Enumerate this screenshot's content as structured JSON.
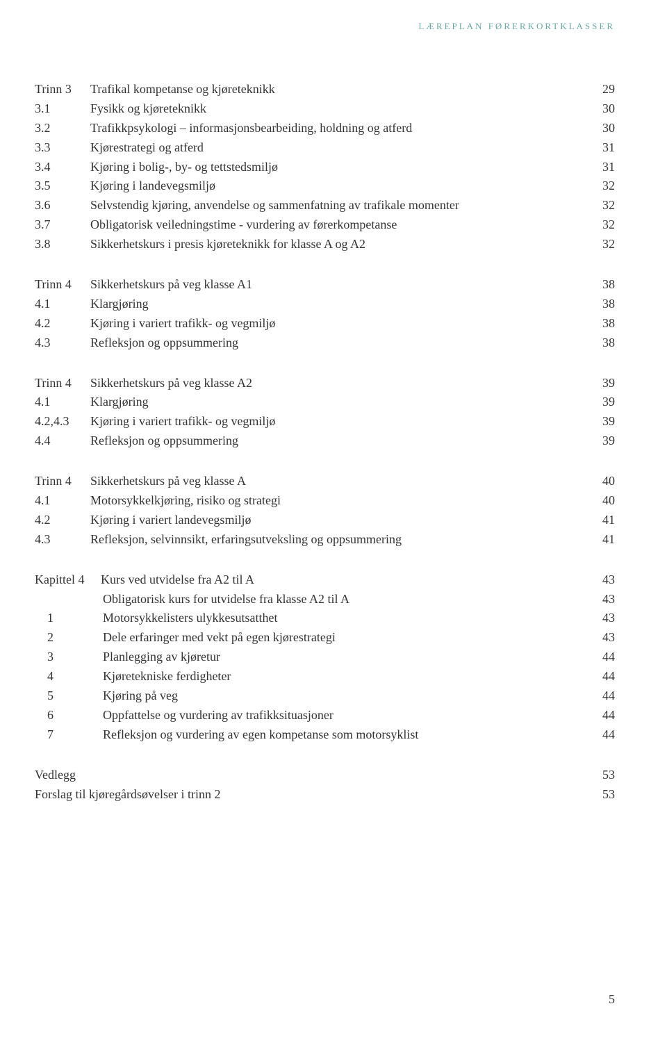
{
  "header": {
    "text": "LÆREPLAN FØRERKORTKLASSER",
    "color": "#6aa8a3",
    "fontsize": 13
  },
  "typography": {
    "body_color": "#333333",
    "body_fontsize": 18,
    "line_height": 1.55
  },
  "sections": [
    {
      "rows": [
        {
          "num": "Trinn 3",
          "label": "Trafikal kompetanse og kjøreteknikk",
          "page": "29"
        },
        {
          "num": "3.1",
          "label": "Fysikk og kjøreteknikk",
          "page": "30"
        },
        {
          "num": "3.2",
          "label": "Trafikkpsykologi – informasjonsbearbeiding, holdning og atferd",
          "page": "30"
        },
        {
          "num": "3.3",
          "label": "Kjørestrategi og atferd",
          "page": "31"
        },
        {
          "num": "3.4",
          "label": "Kjøring i bolig-, by- og tettstedsmiljø",
          "page": "31"
        },
        {
          "num": "3.5",
          "label": "Kjøring i landevegsmiljø",
          "page": "32"
        },
        {
          "num": "3.6",
          "label": "Selvstendig kjøring, anvendelse og sammenfatning av trafikale momenter",
          "page": "32"
        },
        {
          "num": "3.7",
          "label": "Obligatorisk veiledningstime - vurdering av førerkompetanse",
          "page": "32"
        },
        {
          "num": "3.8",
          "label": "Sikkerhetskurs i presis kjøreteknikk for klasse A og A2",
          "page": "32"
        }
      ]
    },
    {
      "rows": [
        {
          "num": "Trinn 4",
          "label": "Sikkerhetskurs på veg klasse A1",
          "page": "38"
        },
        {
          "num": "4.1",
          "label": "Klargjøring",
          "page": "38"
        },
        {
          "num": "4.2",
          "label": "Kjøring i variert trafikk- og vegmiljø",
          "page": "38"
        },
        {
          "num": "4.3",
          "label": "Refleksjon og oppsummering",
          "page": "38"
        }
      ]
    },
    {
      "rows": [
        {
          "num": "Trinn 4",
          "label": "Sikkerhetskurs på veg klasse A2",
          "page": "39"
        },
        {
          "num": "4.1",
          "label": "Klargjøring",
          "page": "39"
        },
        {
          "num": "4.2,4.3",
          "label": "Kjøring i variert trafikk- og vegmiljø",
          "page": "39"
        },
        {
          "num": "4.4",
          "label": "Refleksjon og oppsummering",
          "page": "39"
        }
      ]
    },
    {
      "rows": [
        {
          "num": "Trinn 4",
          "label": "Sikkerhetskurs på veg klasse A",
          "page": "40"
        },
        {
          "num": "4.1",
          "label": "Motorsykkelkjøring, risiko og strategi",
          "page": "40"
        },
        {
          "num": "4.2",
          "label": "Kjøring i variert landevegsmiljø",
          "page": "41"
        },
        {
          "num": "4.3",
          "label": "Refleksjon, selvinnsikt, erfaringsutveksling og oppsummering",
          "page": "41"
        }
      ]
    },
    {
      "rows": [
        {
          "num": "Kapittel 4",
          "label": "Kurs ved utvidelse fra A2 til A",
          "page": "43",
          "numclass": "num-kap"
        },
        {
          "num": "",
          "label": "Obligatorisk kurs for utvidelse fra klasse A2 til A",
          "page": "43",
          "indent": true
        },
        {
          "num": "1",
          "label": "Motorsykkelisters ulykkesutsatthet",
          "page": "43",
          "indent": true
        },
        {
          "num": "2",
          "label": "Dele erfaringer med vekt på egen kjørestrategi",
          "page": "43",
          "indent": true
        },
        {
          "num": "3",
          "label": "Planlegging av kjøretur",
          "page": "44",
          "indent": true
        },
        {
          "num": "4",
          "label": "Kjøretekniske ferdigheter",
          "page": "44",
          "indent": true
        },
        {
          "num": "5",
          "label": "Kjøring på veg",
          "page": "44",
          "indent": true
        },
        {
          "num": "6",
          "label": "Oppfattelse og vurdering av trafikksituasjoner",
          "page": "44",
          "indent": true
        },
        {
          "num": "7",
          "label": "Refleksjon og vurdering av egen kompetanse som motorsyklist",
          "page": "44",
          "indent": true
        }
      ]
    },
    {
      "rows": [
        {
          "num": "Vedlegg",
          "label": "",
          "page": "53",
          "nonum_gap": true
        },
        {
          "num": "",
          "label": "Forslag til kjøregårdsøvelser i trinn 2",
          "page": "53",
          "nospace": true
        }
      ]
    }
  ],
  "page_number": "5"
}
